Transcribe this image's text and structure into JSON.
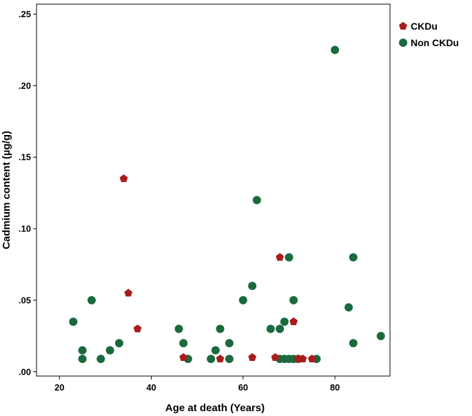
{
  "chart_data": {
    "type": "scatter",
    "xlabel": "Age at death (Years)",
    "ylabel": "Cadmium content (µg/g)",
    "xlim": [
      15,
      92
    ],
    "ylim": [
      -0.003,
      0.257
    ],
    "xticks": [
      {
        "value": 20,
        "label": "20"
      },
      {
        "value": 40,
        "label": "40"
      },
      {
        "value": 60,
        "label": "60"
      },
      {
        "value": 80,
        "label": "80"
      }
    ],
    "yticks": [
      {
        "value": 0.0,
        "label": ".00"
      },
      {
        "value": 0.05,
        "label": ".05"
      },
      {
        "value": 0.1,
        "label": ".10"
      },
      {
        "value": 0.15,
        "label": ".15"
      },
      {
        "value": 0.2,
        "label": ".20"
      },
      {
        "value": 0.25,
        "label": ".25"
      }
    ],
    "grid": false,
    "legend_position": "top-right-outside",
    "series": [
      {
        "name": "CKDu",
        "marker": "pentagon",
        "color": "#a81c1c",
        "points": [
          {
            "x": 34,
            "y": 0.135
          },
          {
            "x": 35,
            "y": 0.055
          },
          {
            "x": 37,
            "y": 0.03
          },
          {
            "x": 47,
            "y": 0.01
          },
          {
            "x": 55,
            "y": 0.009
          },
          {
            "x": 62,
            "y": 0.01
          },
          {
            "x": 67,
            "y": 0.01
          },
          {
            "x": 68,
            "y": 0.08
          },
          {
            "x": 71,
            "y": 0.035
          },
          {
            "x": 72,
            "y": 0.009
          },
          {
            "x": 73,
            "y": 0.009
          },
          {
            "x": 75,
            "y": 0.009
          }
        ]
      },
      {
        "name": "Non CKDu",
        "marker": "circle",
        "color": "#1a6a3e",
        "points": [
          {
            "x": 23,
            "y": 0.035
          },
          {
            "x": 25,
            "y": 0.015
          },
          {
            "x": 25,
            "y": 0.009
          },
          {
            "x": 27,
            "y": 0.05
          },
          {
            "x": 29,
            "y": 0.009
          },
          {
            "x": 31,
            "y": 0.015
          },
          {
            "x": 33,
            "y": 0.02
          },
          {
            "x": 46,
            "y": 0.03
          },
          {
            "x": 47,
            "y": 0.02
          },
          {
            "x": 48,
            "y": 0.009
          },
          {
            "x": 53,
            "y": 0.009
          },
          {
            "x": 54,
            "y": 0.015
          },
          {
            "x": 55,
            "y": 0.03
          },
          {
            "x": 57,
            "y": 0.02
          },
          {
            "x": 57,
            "y": 0.009
          },
          {
            "x": 60,
            "y": 0.05
          },
          {
            "x": 62,
            "y": 0.06
          },
          {
            "x": 63,
            "y": 0.12
          },
          {
            "x": 66,
            "y": 0.03
          },
          {
            "x": 68,
            "y": 0.03
          },
          {
            "x": 68,
            "y": 0.009
          },
          {
            "x": 69,
            "y": 0.035
          },
          {
            "x": 69,
            "y": 0.009
          },
          {
            "x": 70,
            "y": 0.08
          },
          {
            "x": 70,
            "y": 0.009
          },
          {
            "x": 71,
            "y": 0.05
          },
          {
            "x": 71,
            "y": 0.009
          },
          {
            "x": 72,
            "y": 0.009
          },
          {
            "x": 76,
            "y": 0.009
          },
          {
            "x": 80,
            "y": 0.225
          },
          {
            "x": 83,
            "y": 0.045
          },
          {
            "x": 84,
            "y": 0.08
          },
          {
            "x": 84,
            "y": 0.02
          },
          {
            "x": 90,
            "y": 0.025
          }
        ]
      }
    ]
  }
}
